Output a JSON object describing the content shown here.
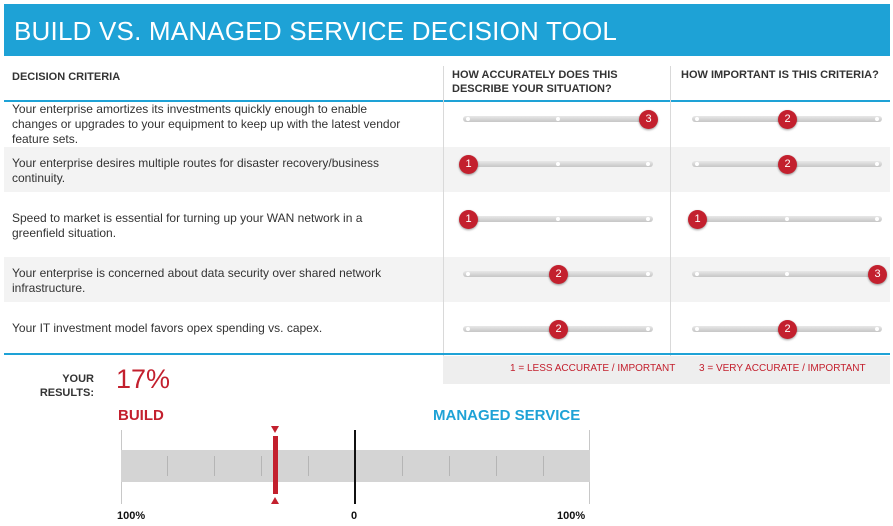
{
  "title": "BUILD VS. MANAGED SERVICE DECISION TOOL",
  "columns": {
    "criteria": "DECISION CRITERIA",
    "accuracy": "HOW ACCURATELY DOES THIS DESCRIBE YOUR SITUATION?",
    "importance": "HOW IMPORTANT IS THIS CRITERIA?"
  },
  "rows": [
    {
      "text": "Your enterprise amortizes its investments quickly enough to enable changes or upgrades to your equipment to keep up with the latest vendor feature sets.",
      "accuracy": 3,
      "importance": 2
    },
    {
      "text": "Your enterprise desires multiple routes for disaster recovery/business continuity.",
      "accuracy": 1,
      "importance": 2
    },
    {
      "text": "Speed to market is essential for turning up your WAN network in a greenfield situation.",
      "accuracy": 1,
      "importance": 1
    },
    {
      "text": "Your enterprise is concerned about data security over shared network infrastructure.",
      "accuracy": 2,
      "importance": 3
    },
    {
      "text": "Your IT investment model favors opex spending vs. capex.",
      "accuracy": 2,
      "importance": 2
    }
  ],
  "slider_min": 1,
  "slider_max": 3,
  "legend": {
    "low": "1 = LESS ACCURATE / IMPORTANT",
    "high": "3 = VERY ACCURATE / IMPORTANT"
  },
  "results": {
    "label": "YOUR RESULTS:",
    "value": "17%",
    "build_label": "BUILD",
    "managed_label": "MANAGED SERVICE",
    "marker_percent_build": 17,
    "scale_left": "100%",
    "scale_center": "0",
    "scale_right": "100%"
  },
  "colors": {
    "accent_blue": "#1ea2d6",
    "accent_red": "#c3202e"
  }
}
